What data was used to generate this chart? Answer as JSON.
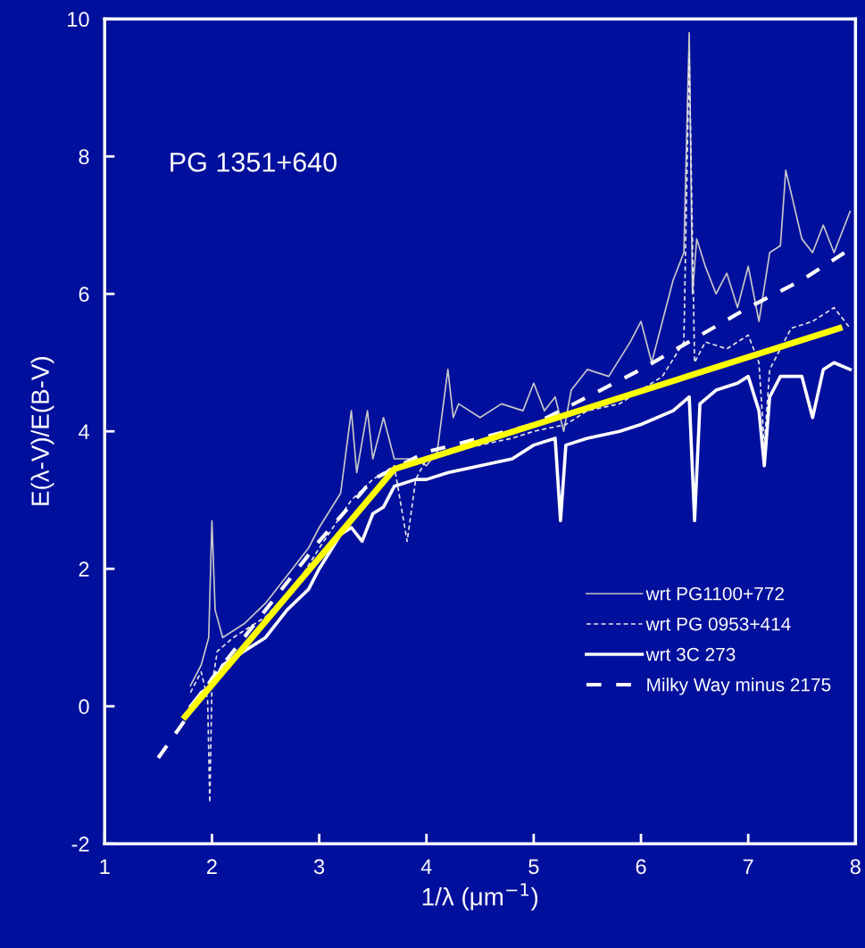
{
  "chart_data": {
    "type": "line",
    "xlabel": "1/λ (μm$^{−1}$)",
    "ylabel": "E(λ-V)/E(B-V)",
    "annotations": [
      "PG 1351+640"
    ],
    "xlim": [
      1,
      8
    ],
    "xticks": [
      1,
      2,
      3,
      4,
      5,
      6,
      7,
      8
    ],
    "ylim": [
      -2,
      10
    ],
    "yticks": [
      -2,
      0,
      2,
      4,
      6,
      8,
      10
    ],
    "grid": false,
    "legend": "bottom right",
    "marker": "none",
    "series": [
      {
        "name": "wrt PG1100+772",
        "color": "#c8c8c8",
        "line_style": "solid",
        "x": [
          1.8,
          1.9,
          1.97,
          2.0,
          2.03,
          2.1,
          2.3,
          2.5,
          2.7,
          2.9,
          3.0,
          3.2,
          3.3,
          3.35,
          3.45,
          3.5,
          3.6,
          3.7,
          3.9,
          4.0,
          4.1,
          4.2,
          4.25,
          4.3,
          4.5,
          4.7,
          4.9,
          5.0,
          5.1,
          5.2,
          5.28,
          5.35,
          5.5,
          5.7,
          5.9,
          6.0,
          6.1,
          6.3,
          6.4,
          6.45,
          6.48,
          6.52,
          6.6,
          6.7,
          6.8,
          6.9,
          7.0,
          7.1,
          7.2,
          7.3,
          7.35,
          7.5,
          7.6,
          7.7,
          7.8,
          7.95
        ],
        "values": [
          0.3,
          0.6,
          1.0,
          2.7,
          1.4,
          1.0,
          1.2,
          1.5,
          1.9,
          2.3,
          2.6,
          3.1,
          4.3,
          3.4,
          4.3,
          3.6,
          4.2,
          3.6,
          3.6,
          3.5,
          3.7,
          4.9,
          4.2,
          4.4,
          4.2,
          4.4,
          4.3,
          4.7,
          4.3,
          4.5,
          4.0,
          4.6,
          4.9,
          4.8,
          5.3,
          5.6,
          5.0,
          6.2,
          6.6,
          9.8,
          6.0,
          6.8,
          6.4,
          6.0,
          6.3,
          5.8,
          6.4,
          5.6,
          6.6,
          6.7,
          7.8,
          6.8,
          6.6,
          7.0,
          6.6,
          7.2
        ]
      },
      {
        "name": "wrt PG 0953+414",
        "color": "#e6e6e6",
        "line_style": "dashed",
        "x": [
          1.8,
          1.9,
          1.96,
          1.98,
          2.0,
          2.05,
          2.2,
          2.5,
          2.8,
          3.0,
          3.3,
          3.5,
          3.7,
          3.82,
          3.9,
          4.0,
          4.2,
          4.5,
          4.8,
          5.0,
          5.3,
          5.5,
          5.8,
          6.0,
          6.2,
          6.4,
          6.45,
          6.5,
          6.6,
          6.8,
          7.0,
          7.1,
          7.15,
          7.2,
          7.4,
          7.6,
          7.8,
          7.95
        ],
        "values": [
          0.2,
          0.5,
          0.1,
          -1.4,
          0.3,
          0.8,
          1.0,
          1.3,
          1.8,
          2.3,
          3.0,
          3.3,
          3.5,
          2.4,
          3.3,
          3.6,
          3.7,
          3.8,
          3.9,
          4.0,
          4.1,
          4.3,
          4.4,
          4.6,
          4.8,
          5.3,
          9.5,
          5.0,
          5.3,
          5.2,
          5.4,
          5.0,
          3.8,
          4.9,
          5.5,
          5.6,
          5.8,
          5.5
        ]
      },
      {
        "name": "wrt 3C 273",
        "color": "#ffffff",
        "line_style": "solid",
        "x": [
          1.8,
          1.9,
          2.0,
          2.1,
          2.3,
          2.5,
          2.7,
          2.9,
          3.0,
          3.2,
          3.3,
          3.4,
          3.5,
          3.6,
          3.7,
          3.9,
          4.0,
          4.2,
          4.5,
          4.8,
          5.0,
          5.2,
          5.25,
          5.3,
          5.5,
          5.8,
          6.0,
          6.3,
          6.45,
          6.5,
          6.55,
          6.7,
          6.9,
          7.0,
          7.1,
          7.15,
          7.2,
          7.3,
          7.5,
          7.6,
          7.7,
          7.8,
          7.95
        ],
        "values": [
          0.0,
          0.2,
          0.3,
          0.6,
          0.8,
          1.0,
          1.4,
          1.7,
          2.0,
          2.5,
          2.6,
          2.4,
          2.8,
          2.9,
          3.2,
          3.3,
          3.3,
          3.4,
          3.5,
          3.6,
          3.8,
          3.9,
          2.7,
          3.8,
          3.9,
          4.0,
          4.1,
          4.3,
          4.5,
          2.7,
          4.4,
          4.6,
          4.7,
          4.8,
          4.3,
          3.5,
          4.5,
          4.8,
          4.8,
          4.2,
          4.9,
          5.0,
          4.9
        ]
      },
      {
        "name": "Milky Way minus 2175",
        "color": "#ffffff",
        "line_style": "dashed",
        "x": [
          1.5,
          1.75,
          2.0,
          2.5,
          3.0,
          3.5,
          4.0,
          5.0,
          6.0,
          7.0,
          7.5,
          7.9
        ],
        "values": [
          -0.75,
          -0.2,
          0.4,
          1.4,
          2.4,
          3.3,
          3.7,
          4.1,
          4.9,
          5.8,
          6.2,
          6.6
        ]
      },
      {
        "color": "#ffff00",
        "line_style": "solid",
        "x": [
          1.75,
          3.7,
          7.85
        ],
        "values": [
          -0.15,
          3.45,
          5.5
        ]
      }
    ]
  }
}
